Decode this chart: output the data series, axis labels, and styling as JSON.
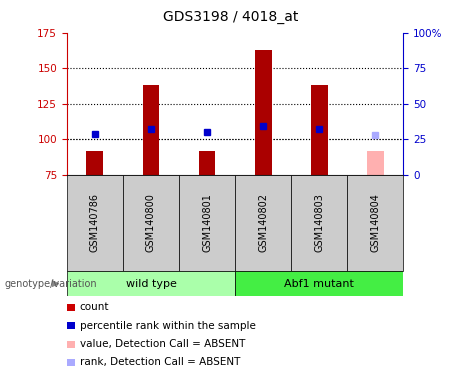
{
  "title": "GDS3198 / 4018_at",
  "samples": [
    "GSM140786",
    "GSM140800",
    "GSM140801",
    "GSM140802",
    "GSM140803",
    "GSM140804"
  ],
  "bar_values": [
    92,
    138,
    92,
    163,
    138,
    null
  ],
  "bar_base": 75,
  "bar_color": "#aa0000",
  "bar_absent_value": 92,
  "bar_absent_color": "#ffb0b0",
  "rank_values": [
    104,
    107,
    105,
    109,
    107,
    null
  ],
  "rank_color": "#0000cc",
  "rank_absent_value": 103,
  "rank_absent_color": "#aaaaff",
  "absent_sample_idx": 5,
  "ylim_left": [
    75,
    175
  ],
  "ylim_right": [
    0,
    100
  ],
  "yticks_left": [
    75,
    100,
    125,
    150,
    175
  ],
  "yticks_right": [
    0,
    25,
    50,
    75,
    100
  ],
  "ytick_labels_right": [
    "0",
    "25",
    "50",
    "75",
    "100%"
  ],
  "grid_values": [
    100,
    125,
    150
  ],
  "group1_label": "wild type",
  "group2_label": "Abf1 mutant",
  "group1_samples": [
    0,
    1,
    2
  ],
  "group2_samples": [
    3,
    4,
    5
  ],
  "group_label_prefix": "genotype/variation",
  "legend_items": [
    {
      "label": "count",
      "color": "#cc0000"
    },
    {
      "label": "percentile rank within the sample",
      "color": "#0000cc"
    },
    {
      "label": "value, Detection Call = ABSENT",
      "color": "#ffb0b0"
    },
    {
      "label": "rank, Detection Call = ABSENT",
      "color": "#aaaaff"
    }
  ],
  "bar_width": 0.3,
  "rank_marker_size": 5,
  "background_color": "#ffffff",
  "left_axis_color": "#cc0000",
  "right_axis_color": "#0000cc",
  "sample_box_color": "#cccccc",
  "group_box_color1": "#aaffaa",
  "group_box_color2": "#44ee44"
}
